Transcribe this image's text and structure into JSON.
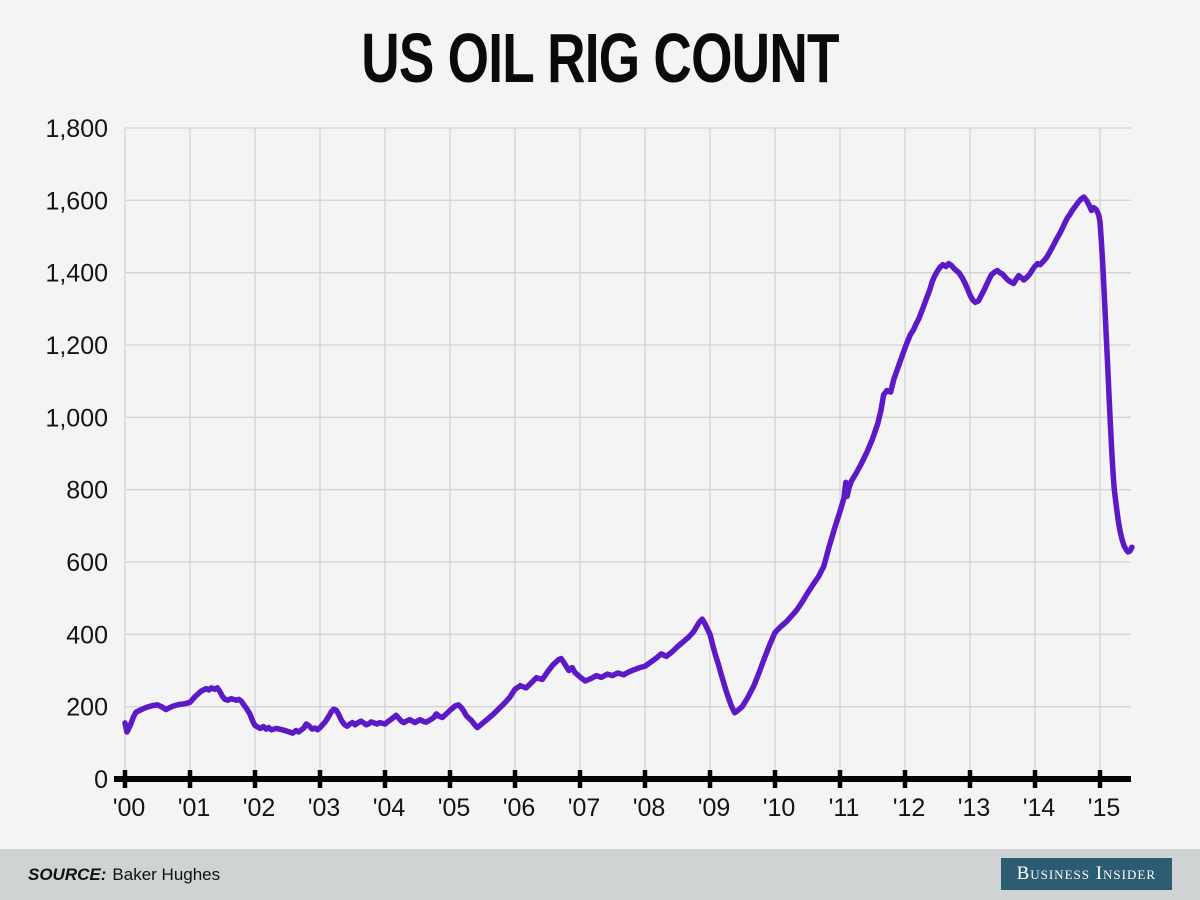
{
  "page": {
    "background": "#f4f4f4"
  },
  "chart_data": {
    "type": "line",
    "title": "US OIL RIG COUNT",
    "xlabel": "",
    "ylabel": "",
    "xlim": [
      2000,
      2015.5
    ],
    "ylim": [
      0,
      1800
    ],
    "grid": true,
    "legend_position": "none",
    "x_axis": {
      "tick_years": [
        2000,
        2001,
        2002,
        2003,
        2004,
        2005,
        2006,
        2007,
        2008,
        2009,
        2010,
        2011,
        2012,
        2013,
        2014,
        2015
      ],
      "tick_labels": [
        "'00",
        "'01",
        "'02",
        "'03",
        "'04",
        "'05",
        "'06",
        "'07",
        "'08",
        "'09",
        "'10",
        "'11",
        "'12",
        "'13",
        "'14",
        "'15"
      ]
    },
    "y_axis": {
      "tick_values": [
        0,
        200,
        400,
        600,
        800,
        1000,
        1200,
        1400,
        1600,
        1800
      ],
      "tick_labels": [
        "0",
        "200",
        "400",
        "600",
        "800",
        "1,000",
        "1,200",
        "1,400",
        "1,600",
        "1,800"
      ]
    },
    "series": [
      {
        "name": "US oil rig count",
        "color": "#5c19c5",
        "points": [
          [
            2000.0,
            155
          ],
          [
            2000.03,
            130
          ],
          [
            2000.08,
            148
          ],
          [
            2000.13,
            172
          ],
          [
            2000.17,
            185
          ],
          [
            2000.25,
            192
          ],
          [
            2000.33,
            198
          ],
          [
            2000.42,
            203
          ],
          [
            2000.5,
            205
          ],
          [
            2000.58,
            198
          ],
          [
            2000.63,
            192
          ],
          [
            2000.67,
            196
          ],
          [
            2000.75,
            202
          ],
          [
            2000.83,
            206
          ],
          [
            2000.92,
            208
          ],
          [
            2001.0,
            212
          ],
          [
            2001.08,
            228
          ],
          [
            2001.17,
            243
          ],
          [
            2001.25,
            250
          ],
          [
            2001.29,
            246
          ],
          [
            2001.33,
            252
          ],
          [
            2001.38,
            248
          ],
          [
            2001.42,
            252
          ],
          [
            2001.46,
            242
          ],
          [
            2001.5,
            228
          ],
          [
            2001.54,
            220
          ],
          [
            2001.58,
            218
          ],
          [
            2001.63,
            222
          ],
          [
            2001.67,
            220
          ],
          [
            2001.71,
            218
          ],
          [
            2001.75,
            220
          ],
          [
            2001.79,
            215
          ],
          [
            2001.83,
            205
          ],
          [
            2001.88,
            192
          ],
          [
            2001.92,
            180
          ],
          [
            2001.96,
            162
          ],
          [
            2002.0,
            148
          ],
          [
            2002.08,
            140
          ],
          [
            2002.13,
            145
          ],
          [
            2002.17,
            138
          ],
          [
            2002.21,
            142
          ],
          [
            2002.25,
            136
          ],
          [
            2002.33,
            140
          ],
          [
            2002.42,
            136
          ],
          [
            2002.5,
            132
          ],
          [
            2002.58,
            127
          ],
          [
            2002.63,
            134
          ],
          [
            2002.67,
            130
          ],
          [
            2002.75,
            141
          ],
          [
            2002.79,
            152
          ],
          [
            2002.83,
            147
          ],
          [
            2002.88,
            138
          ],
          [
            2002.92,
            141
          ],
          [
            2002.96,
            136
          ],
          [
            2003.0,
            142
          ],
          [
            2003.08,
            158
          ],
          [
            2003.13,
            172
          ],
          [
            2003.17,
            185
          ],
          [
            2003.21,
            193
          ],
          [
            2003.25,
            190
          ],
          [
            2003.29,
            178
          ],
          [
            2003.33,
            162
          ],
          [
            2003.38,
            150
          ],
          [
            2003.42,
            146
          ],
          [
            2003.46,
            152
          ],
          [
            2003.5,
            156
          ],
          [
            2003.54,
            150
          ],
          [
            2003.58,
            155
          ],
          [
            2003.63,
            160
          ],
          [
            2003.67,
            155
          ],
          [
            2003.71,
            150
          ],
          [
            2003.75,
            153
          ],
          [
            2003.79,
            158
          ],
          [
            2003.83,
            155
          ],
          [
            2003.88,
            152
          ],
          [
            2003.92,
            156
          ],
          [
            2004.0,
            152
          ],
          [
            2004.04,
            158
          ],
          [
            2004.08,
            163
          ],
          [
            2004.13,
            170
          ],
          [
            2004.17,
            176
          ],
          [
            2004.21,
            168
          ],
          [
            2004.25,
            160
          ],
          [
            2004.29,
            156
          ],
          [
            2004.33,
            160
          ],
          [
            2004.38,
            164
          ],
          [
            2004.42,
            160
          ],
          [
            2004.46,
            156
          ],
          [
            2004.5,
            160
          ],
          [
            2004.54,
            164
          ],
          [
            2004.58,
            160
          ],
          [
            2004.63,
            157
          ],
          [
            2004.67,
            161
          ],
          [
            2004.71,
            165
          ],
          [
            2004.75,
            170
          ],
          [
            2004.79,
            180
          ],
          [
            2004.83,
            174
          ],
          [
            2004.88,
            170
          ],
          [
            2004.92,
            176
          ],
          [
            2005.0,
            190
          ],
          [
            2005.04,
            196
          ],
          [
            2005.08,
            202
          ],
          [
            2005.13,
            205
          ],
          [
            2005.17,
            198
          ],
          [
            2005.21,
            188
          ],
          [
            2005.25,
            175
          ],
          [
            2005.29,
            168
          ],
          [
            2005.33,
            162
          ],
          [
            2005.38,
            150
          ],
          [
            2005.42,
            142
          ],
          [
            2005.46,
            148
          ],
          [
            2005.5,
            154
          ],
          [
            2005.58,
            166
          ],
          [
            2005.67,
            180
          ],
          [
            2005.75,
            194
          ],
          [
            2005.83,
            208
          ],
          [
            2005.92,
            226
          ],
          [
            2006.0,
            248
          ],
          [
            2006.08,
            258
          ],
          [
            2006.17,
            252
          ],
          [
            2006.25,
            266
          ],
          [
            2006.33,
            280
          ],
          [
            2006.42,
            275
          ],
          [
            2006.5,
            296
          ],
          [
            2006.58,
            315
          ],
          [
            2006.67,
            330
          ],
          [
            2006.71,
            333
          ],
          [
            2006.75,
            322
          ],
          [
            2006.83,
            300
          ],
          [
            2006.88,
            308
          ],
          [
            2006.92,
            295
          ],
          [
            2007.0,
            282
          ],
          [
            2007.08,
            271
          ],
          [
            2007.17,
            278
          ],
          [
            2007.25,
            286
          ],
          [
            2007.33,
            281
          ],
          [
            2007.42,
            290
          ],
          [
            2007.5,
            286
          ],
          [
            2007.58,
            293
          ],
          [
            2007.67,
            288
          ],
          [
            2007.75,
            296
          ],
          [
            2007.83,
            302
          ],
          [
            2007.92,
            308
          ],
          [
            2008.0,
            312
          ],
          [
            2008.08,
            322
          ],
          [
            2008.17,
            334
          ],
          [
            2008.25,
            346
          ],
          [
            2008.33,
            339
          ],
          [
            2008.42,
            352
          ],
          [
            2008.5,
            366
          ],
          [
            2008.58,
            378
          ],
          [
            2008.67,
            392
          ],
          [
            2008.75,
            408
          ],
          [
            2008.83,
            432
          ],
          [
            2008.88,
            442
          ],
          [
            2008.92,
            430
          ],
          [
            2009.0,
            400
          ],
          [
            2009.04,
            372
          ],
          [
            2009.08,
            345
          ],
          [
            2009.13,
            316
          ],
          [
            2009.17,
            290
          ],
          [
            2009.21,
            266
          ],
          [
            2009.25,
            242
          ],
          [
            2009.29,
            222
          ],
          [
            2009.33,
            202
          ],
          [
            2009.38,
            183
          ],
          [
            2009.42,
            188
          ],
          [
            2009.5,
            201
          ],
          [
            2009.58,
            225
          ],
          [
            2009.67,
            256
          ],
          [
            2009.75,
            292
          ],
          [
            2009.83,
            330
          ],
          [
            2009.92,
            372
          ],
          [
            2010.0,
            405
          ],
          [
            2010.08,
            420
          ],
          [
            2010.17,
            434
          ],
          [
            2010.25,
            450
          ],
          [
            2010.33,
            466
          ],
          [
            2010.42,
            490
          ],
          [
            2010.5,
            514
          ],
          [
            2010.58,
            536
          ],
          [
            2010.67,
            560
          ],
          [
            2010.75,
            588
          ],
          [
            2010.83,
            640
          ],
          [
            2010.92,
            695
          ],
          [
            2011.0,
            740
          ],
          [
            2011.06,
            776
          ],
          [
            2011.09,
            820
          ],
          [
            2011.11,
            782
          ],
          [
            2011.14,
            806
          ],
          [
            2011.17,
            822
          ],
          [
            2011.25,
            846
          ],
          [
            2011.33,
            872
          ],
          [
            2011.42,
            906
          ],
          [
            2011.5,
            940
          ],
          [
            2011.58,
            982
          ],
          [
            2011.63,
            1020
          ],
          [
            2011.67,
            1062
          ],
          [
            2011.72,
            1074
          ],
          [
            2011.78,
            1070
          ],
          [
            2011.83,
            1106
          ],
          [
            2011.92,
            1152
          ],
          [
            2012.0,
            1192
          ],
          [
            2012.04,
            1210
          ],
          [
            2012.08,
            1228
          ],
          [
            2012.13,
            1242
          ],
          [
            2012.17,
            1258
          ],
          [
            2012.21,
            1272
          ],
          [
            2012.25,
            1290
          ],
          [
            2012.29,
            1308
          ],
          [
            2012.33,
            1328
          ],
          [
            2012.38,
            1352
          ],
          [
            2012.42,
            1376
          ],
          [
            2012.46,
            1392
          ],
          [
            2012.5,
            1405
          ],
          [
            2012.54,
            1415
          ],
          [
            2012.58,
            1422
          ],
          [
            2012.63,
            1417
          ],
          [
            2012.67,
            1425
          ],
          [
            2012.72,
            1419
          ],
          [
            2012.75,
            1412
          ],
          [
            2012.79,
            1406
          ],
          [
            2012.83,
            1400
          ],
          [
            2012.88,
            1386
          ],
          [
            2012.92,
            1372
          ],
          [
            2012.96,
            1356
          ],
          [
            2013.0,
            1338
          ],
          [
            2013.04,
            1325
          ],
          [
            2013.08,
            1318
          ],
          [
            2013.13,
            1322
          ],
          [
            2013.17,
            1336
          ],
          [
            2013.21,
            1350
          ],
          [
            2013.25,
            1365
          ],
          [
            2013.29,
            1380
          ],
          [
            2013.33,
            1394
          ],
          [
            2013.38,
            1402
          ],
          [
            2013.42,
            1406
          ],
          [
            2013.46,
            1400
          ],
          [
            2013.5,
            1396
          ],
          [
            2013.54,
            1388
          ],
          [
            2013.58,
            1380
          ],
          [
            2013.63,
            1374
          ],
          [
            2013.67,
            1370
          ],
          [
            2013.71,
            1382
          ],
          [
            2013.75,
            1392
          ],
          [
            2013.79,
            1386
          ],
          [
            2013.83,
            1380
          ],
          [
            2013.88,
            1388
          ],
          [
            2013.92,
            1396
          ],
          [
            2013.96,
            1408
          ],
          [
            2014.0,
            1418
          ],
          [
            2014.04,
            1425
          ],
          [
            2014.08,
            1422
          ],
          [
            2014.13,
            1432
          ],
          [
            2014.17,
            1440
          ],
          [
            2014.21,
            1452
          ],
          [
            2014.25,
            1465
          ],
          [
            2014.29,
            1478
          ],
          [
            2014.33,
            1492
          ],
          [
            2014.38,
            1508
          ],
          [
            2014.42,
            1522
          ],
          [
            2014.46,
            1538
          ],
          [
            2014.5,
            1552
          ],
          [
            2014.54,
            1562
          ],
          [
            2014.58,
            1574
          ],
          [
            2014.63,
            1586
          ],
          [
            2014.67,
            1596
          ],
          [
            2014.71,
            1604
          ],
          [
            2014.75,
            1609
          ],
          [
            2014.79,
            1601
          ],
          [
            2014.83,
            1588
          ],
          [
            2014.87,
            1572
          ],
          [
            2014.9,
            1580
          ],
          [
            2014.94,
            1575
          ],
          [
            2014.98,
            1560
          ],
          [
            2015.0,
            1540
          ],
          [
            2015.02,
            1490
          ],
          [
            2015.04,
            1430
          ],
          [
            2015.06,
            1360
          ],
          [
            2015.08,
            1285
          ],
          [
            2015.1,
            1210
          ],
          [
            2015.12,
            1135
          ],
          [
            2015.14,
            1055
          ],
          [
            2015.16,
            980
          ],
          [
            2015.18,
            910
          ],
          [
            2015.2,
            848
          ],
          [
            2015.22,
            800
          ],
          [
            2015.25,
            755
          ],
          [
            2015.28,
            715
          ],
          [
            2015.31,
            685
          ],
          [
            2015.34,
            662
          ],
          [
            2015.37,
            645
          ],
          [
            2015.4,
            635
          ],
          [
            2015.43,
            628
          ],
          [
            2015.46,
            630
          ],
          [
            2015.49,
            641
          ]
        ]
      }
    ]
  },
  "footer": {
    "source_label": "SOURCE:",
    "source_value": "Baker Hughes",
    "brand": "Business Insider",
    "brand_bg": "#2b5c72"
  }
}
